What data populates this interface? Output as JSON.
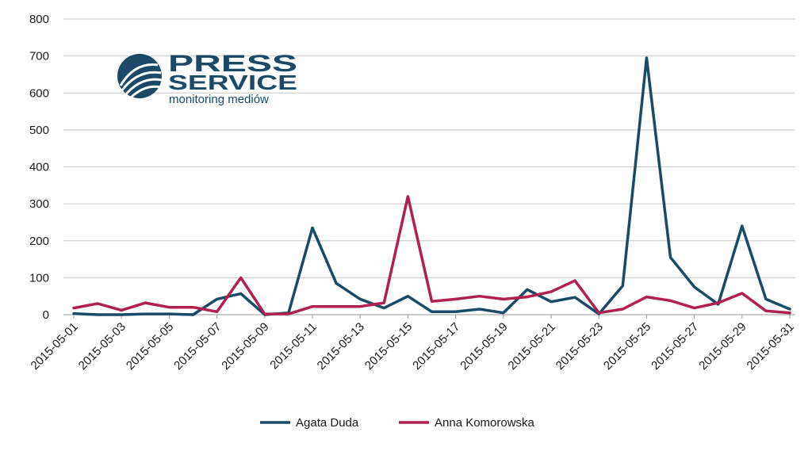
{
  "logo": {
    "line1": "PRESS",
    "line2": "SERVICE",
    "tagline": "monitoring mediów",
    "color": "#1c4a66"
  },
  "chart_data": {
    "type": "line",
    "ylim": [
      0,
      800
    ],
    "yticks": [
      0,
      100,
      200,
      300,
      400,
      500,
      600,
      700,
      800
    ],
    "grid": true,
    "legend_position": "bottom",
    "x": [
      "2015-05-01",
      "2015-05-02",
      "2015-05-03",
      "2015-05-04",
      "2015-05-05",
      "2015-05-06",
      "2015-05-07",
      "2015-05-08",
      "2015-05-09",
      "2015-05-10",
      "2015-05-11",
      "2015-05-12",
      "2015-05-13",
      "2015-05-14",
      "2015-05-15",
      "2015-05-16",
      "2015-05-17",
      "2015-05-18",
      "2015-05-19",
      "2015-05-20",
      "2015-05-21",
      "2015-05-22",
      "2015-05-23",
      "2015-05-24",
      "2015-05-25",
      "2015-05-26",
      "2015-05-27",
      "2015-05-28",
      "2015-05-29",
      "2015-05-30",
      "2015-05-31"
    ],
    "xtick_labels": [
      "2015-05-01",
      "2015-05-03",
      "2015-05-05",
      "2015-05-07",
      "2015-05-09",
      "2015-05-11",
      "2015-05-13",
      "2015-05-15",
      "2015-05-17",
      "2015-05-19",
      "2015-05-21",
      "2015-05-23",
      "2015-05-25",
      "2015-05-27",
      "2015-05-29",
      "2015-05-31"
    ],
    "series": [
      {
        "name": "Agata Duda",
        "color": "#1b4a66",
        "values": [
          3,
          0,
          0,
          2,
          2,
          0,
          42,
          57,
          0,
          5,
          235,
          85,
          42,
          18,
          50,
          8,
          8,
          15,
          5,
          68,
          35,
          47,
          2,
          78,
          695,
          155,
          75,
          28,
          240,
          42,
          15
        ]
      },
      {
        "name": "Anna Komorowska",
        "color": "#b0214f",
        "values": [
          18,
          30,
          12,
          32,
          20,
          20,
          8,
          100,
          2,
          2,
          22,
          22,
          22,
          32,
          320,
          36,
          42,
          50,
          42,
          48,
          62,
          92,
          5,
          15,
          48,
          38,
          18,
          32,
          58,
          10,
          5
        ]
      }
    ]
  }
}
